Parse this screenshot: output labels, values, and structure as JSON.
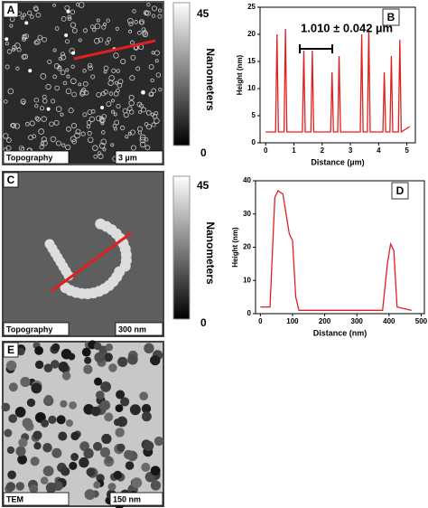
{
  "panels": {
    "A": {
      "label": "A",
      "caption_left": "Topography",
      "caption_right": "3 µm"
    },
    "colorbar_top": {
      "max": "45",
      "min": "0",
      "label": "Nanometers"
    },
    "C": {
      "label": "C",
      "caption_left": "Topography",
      "caption_right": "300 nm"
    },
    "colorbar_bottom": {
      "max": "45",
      "min": "0",
      "label": "Nanometers"
    },
    "E": {
      "label": "E",
      "caption_left": "TEM",
      "caption_right": "150 nm"
    }
  },
  "chart_data": [
    {
      "type": "line",
      "label": "B",
      "annotation": "1.010 ± 0.042 µm",
      "xlabel": "Distance (µm)",
      "ylabel": "Height (nm)",
      "color": "#e02020",
      "xlim": [
        -0.2,
        5.3
      ],
      "ylim": [
        0,
        25
      ],
      "xticks": [
        0,
        1,
        2,
        3,
        4,
        5
      ],
      "yticks": [
        0,
        5,
        10,
        15,
        20,
        25
      ],
      "x": [
        0,
        0.35,
        0.4,
        0.45,
        0.65,
        0.7,
        0.75,
        1.3,
        1.35,
        1.4,
        1.6,
        1.65,
        1.7,
        2.3,
        2.35,
        2.4,
        2.55,
        2.6,
        2.65,
        3.35,
        3.4,
        3.45,
        3.6,
        3.65,
        3.7,
        4.15,
        4.2,
        4.25,
        4.4,
        4.45,
        4.5,
        4.7,
        4.75,
        4.8,
        5.1
      ],
      "values": [
        2,
        2,
        20,
        2,
        2,
        21,
        2,
        2,
        17,
        2,
        2,
        17,
        2,
        2,
        13,
        2,
        2,
        16,
        2,
        2,
        20,
        2,
        2,
        21,
        2,
        2,
        13,
        2,
        2,
        16,
        2,
        2,
        19,
        2,
        3
      ]
    },
    {
      "type": "line",
      "label": "D",
      "xlabel": "Distance (nm)",
      "ylabel": "Height (nm)",
      "color": "#e02020",
      "xlim": [
        -15,
        510
      ],
      "ylim": [
        0,
        40
      ],
      "xticks": [
        0,
        100,
        200,
        300,
        400,
        500
      ],
      "yticks": [
        0,
        10,
        20,
        30,
        40
      ],
      "x": [
        0,
        30,
        45,
        55,
        70,
        80,
        90,
        100,
        110,
        120,
        200,
        300,
        380,
        395,
        405,
        415,
        425,
        470
      ],
      "values": [
        2,
        2,
        35,
        37,
        36,
        30,
        24,
        22,
        5,
        1,
        1,
        1,
        1,
        15,
        21,
        19,
        2,
        1
      ]
    }
  ]
}
